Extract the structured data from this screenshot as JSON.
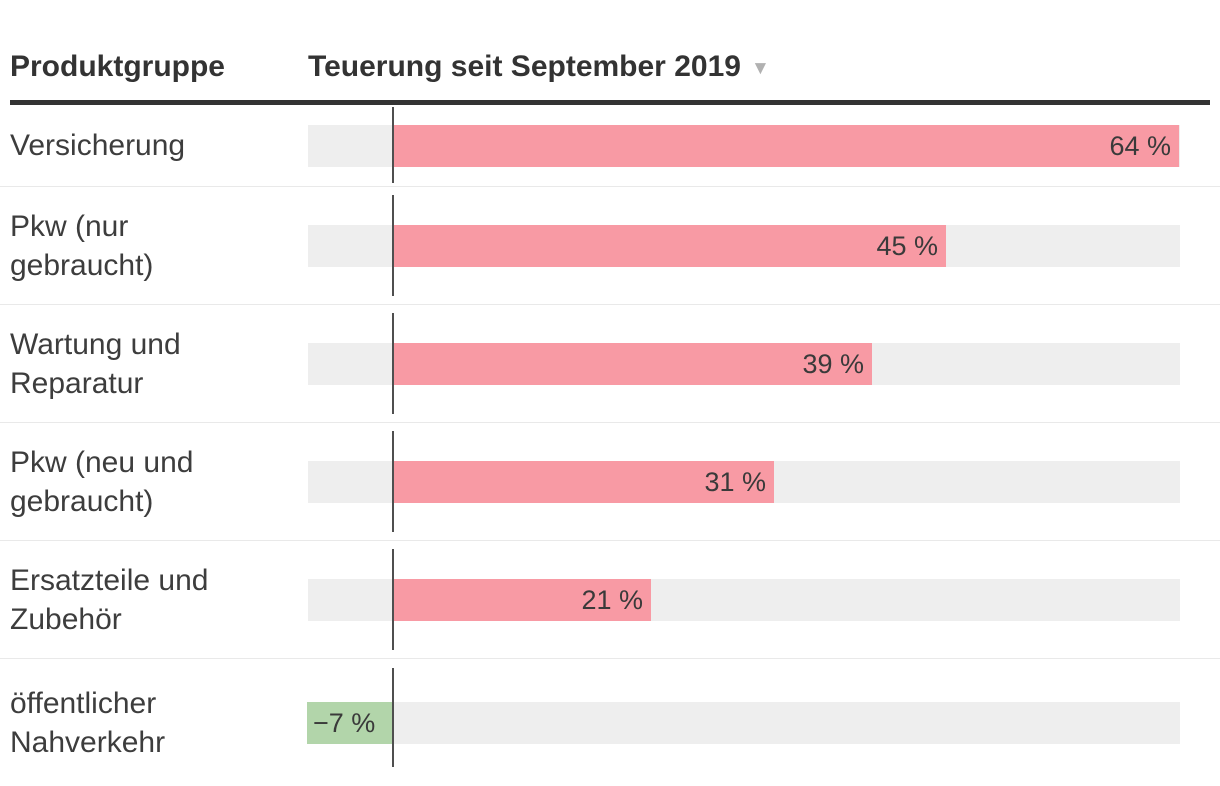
{
  "header": {
    "col1": "Produktgruppe",
    "col2": "Teuerung seit September 2019",
    "sort_icon": "▼"
  },
  "colors": {
    "positive_bar": "#f89aa4",
    "negative_bar": "#b2d5aa",
    "track": "#eeeeee",
    "baseline": "#4f4f4f",
    "separator": "#e9e9e9",
    "header_rule": "#333333",
    "sort_icon": "#b1b1b1",
    "text": "#3d3d3d"
  },
  "chart_data": {
    "type": "bar",
    "orientation": "horizontal",
    "title": "Teuerung seit September 2019",
    "categories": [
      "Versicherung",
      "Pkw (nur gebraucht)",
      "Wartung und Reparatur",
      "Pkw (neu und gebraucht)",
      "Ersatzteile und Zubehör",
      "öffentlicher Nahverkehr"
    ],
    "values": [
      64,
      45,
      39,
      31,
      21,
      -7
    ],
    "value_labels": [
      "64 %",
      "45 %",
      "39 %",
      "31 %",
      "21 %",
      "−7 %"
    ],
    "unit": "%",
    "xlim": [
      -7,
      64
    ],
    "grid": false,
    "legend": false
  },
  "rows": [
    {
      "label": "Versicherung",
      "label_lines": [
        "Versicherung"
      ],
      "value_label": "64 %"
    },
    {
      "label": "Pkw (nur gebraucht)",
      "label_lines": [
        "Pkw (nur",
        "gebraucht)"
      ],
      "value_label": "45 %"
    },
    {
      "label": "Wartung und Reparatur",
      "label_lines": [
        "Wartung und",
        "Reparatur"
      ],
      "value_label": "39 %"
    },
    {
      "label": "Pkw (neu und gebraucht)",
      "label_lines": [
        "Pkw (neu und",
        "gebraucht)"
      ],
      "value_label": "31 %"
    },
    {
      "label": "Ersatzteile und Zubehör",
      "label_lines": [
        "Ersatzteile und",
        "Zubehör"
      ],
      "value_label": "21 %"
    },
    {
      "label": "öffentlicher Nahverkehr",
      "label_lines": [
        "öffentlicher",
        "Nahverkehr"
      ],
      "value_label": "−7 %"
    }
  ]
}
